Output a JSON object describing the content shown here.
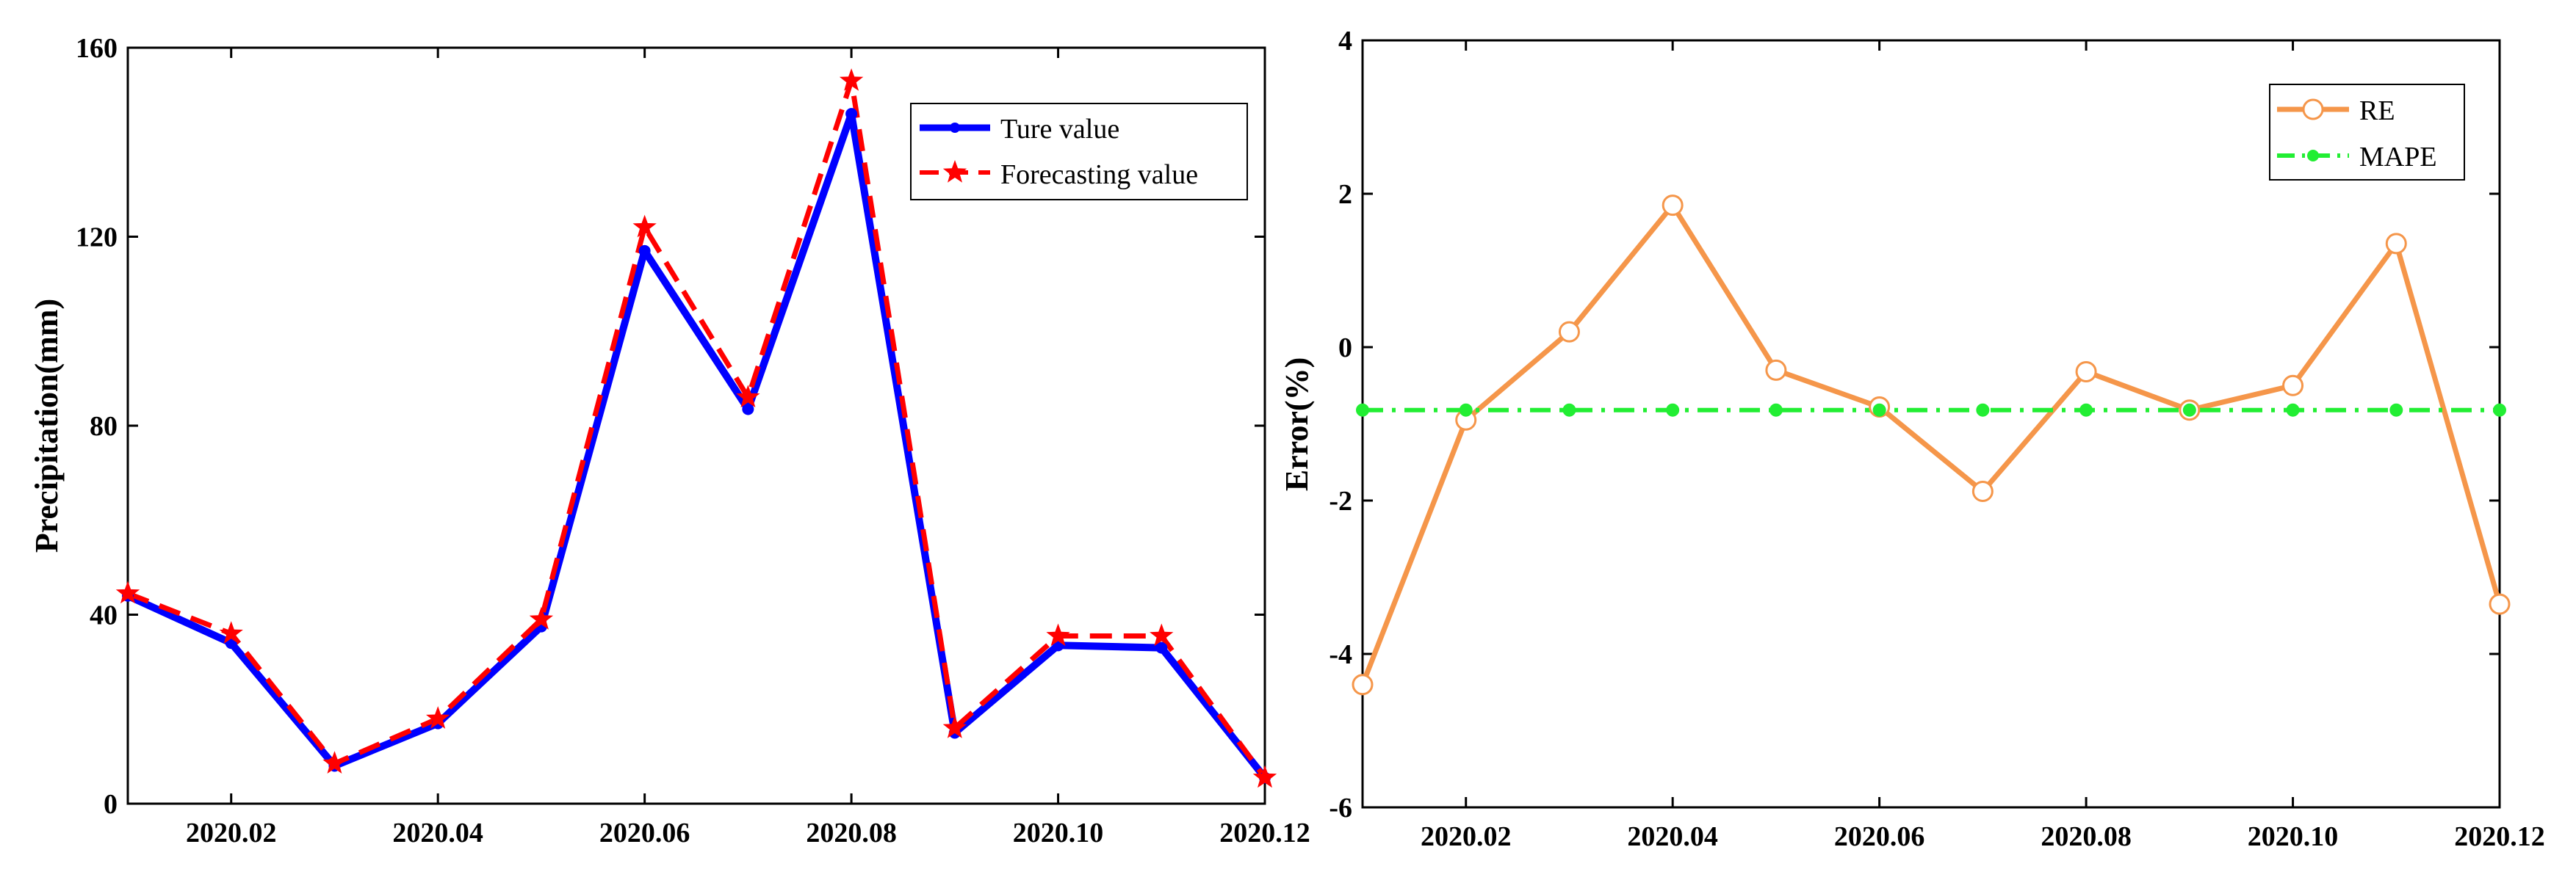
{
  "chart_data": [
    {
      "type": "line",
      "title": "",
      "xlabel": "",
      "ylabel": "Precipitation(mm)",
      "x_range": [
        1,
        12
      ],
      "ylim": [
        0,
        160
      ],
      "yticks": [
        0,
        40,
        80,
        120,
        160
      ],
      "xticks": [
        2,
        4,
        6,
        8,
        10,
        12
      ],
      "xtick_labels": [
        "2020.02",
        "2020.04",
        "2020.06",
        "2020.08",
        "2020.10",
        "2020.12"
      ],
      "legend_position": "top-right",
      "series": [
        {
          "name": "Ture value",
          "color": "#0000ff",
          "style": "solid",
          "marker": "dot",
          "x": [
            1,
            2,
            3,
            4,
            5,
            6,
            7,
            8,
            9,
            10,
            11,
            12
          ],
          "values": [
            44,
            34,
            8,
            17,
            37.5,
            117,
            83.5,
            146,
            15,
            33.5,
            33,
            5.5
          ]
        },
        {
          "name": "Forecasting value",
          "color": "#ff0000",
          "style": "dashed",
          "marker": "star",
          "x": [
            1,
            2,
            3,
            4,
            5,
            6,
            7,
            8,
            9,
            10,
            11,
            12
          ],
          "values": [
            44.5,
            36,
            8.5,
            18,
            39,
            122,
            86,
            153,
            16,
            35.5,
            35.5,
            5.5
          ]
        }
      ]
    },
    {
      "type": "line",
      "title": "",
      "xlabel": "",
      "ylabel": "Error(%)",
      "x_range": [
        1,
        12
      ],
      "ylim": [
        -6,
        4
      ],
      "yticks": [
        -6,
        -4,
        -2,
        0,
        2,
        4
      ],
      "xticks": [
        2,
        4,
        6,
        8,
        10,
        12
      ],
      "xtick_labels": [
        "2020.02",
        "2020.04",
        "2020.06",
        "2020.08",
        "2020.10",
        "2020.12"
      ],
      "legend_position": "top-right",
      "series": [
        {
          "name": "RE",
          "color": "#f5964a",
          "style": "solid",
          "marker": "open-circle",
          "x": [
            1,
            2,
            3,
            4,
            5,
            6,
            7,
            8,
            9,
            10,
            11,
            12
          ],
          "values": [
            -4.4,
            -0.95,
            0.2,
            1.85,
            -0.3,
            -0.78,
            -1.88,
            -0.32,
            -0.82,
            -0.5,
            1.35,
            -3.35
          ]
        },
        {
          "name": "MAPE",
          "color": "#22ee33",
          "style": "dashdot",
          "marker": "dot",
          "x": [
            1,
            2,
            3,
            4,
            5,
            6,
            7,
            8,
            9,
            10,
            11,
            12
          ],
          "values": [
            -0.82,
            -0.82,
            -0.82,
            -0.82,
            -0.82,
            -0.82,
            -0.82,
            -0.82,
            -0.82,
            -0.82,
            -0.82,
            -0.82
          ]
        }
      ]
    }
  ]
}
